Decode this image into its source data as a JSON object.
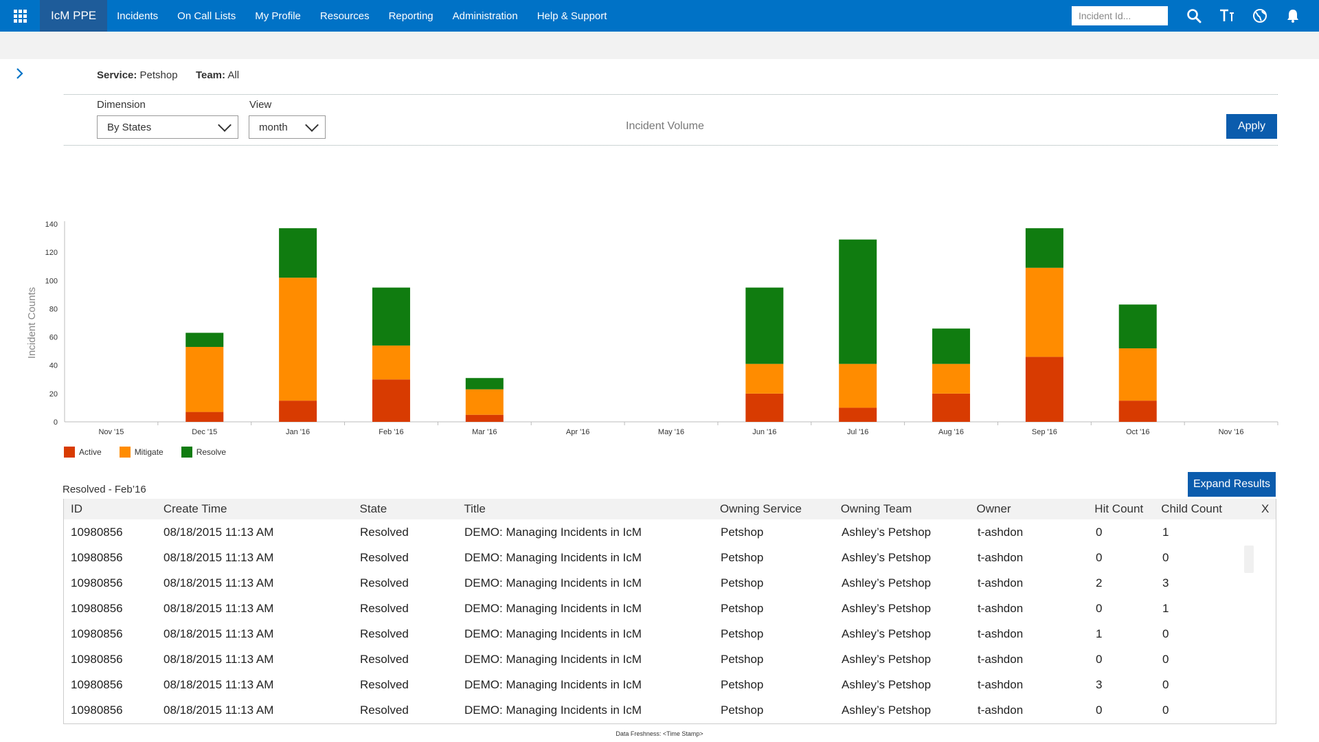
{
  "app": {
    "brand": "IcM PPE"
  },
  "nav": [
    "Incidents",
    "On Call Lists",
    "My Profile",
    "Resources",
    "Reporting",
    "Administration",
    "Help & Support"
  ],
  "search": {
    "placeholder": "Incident Id..."
  },
  "icons": {
    "waffle": "app-launcher-icon",
    "search": "search-icon",
    "text": "text-size-icon",
    "globe": "globe-icon",
    "bell": "bell-icon",
    "expand": "chevron-right-icon"
  },
  "filters": {
    "service_label": "Service:",
    "service_value": "Petshop",
    "team_label": "Team:",
    "team_value": "All"
  },
  "controls": {
    "dimension_label": "Dimension",
    "dimension_value": "By States",
    "view_label": "View",
    "view_value": "month",
    "chart_caption": "Incident Volume",
    "apply_label": "Apply"
  },
  "chart_data": {
    "type": "bar",
    "stacked": true,
    "ylabel": "Incident Counts",
    "ylim": [
      0,
      140
    ],
    "yticks": [
      0,
      20,
      40,
      60,
      80,
      100,
      120,
      140
    ],
    "categories": [
      "Nov '15",
      "Dec '15",
      "Jan '16",
      "Feb '16",
      "Mar '16",
      "Apr '16",
      "May '16",
      "Jun '16",
      "Jul '16",
      "Aug '16",
      "Sep '16",
      "Oct '16",
      "Nov '16"
    ],
    "series": [
      {
        "name": "Active",
        "color": "#d83b01",
        "values": [
          0,
          7,
          15,
          30,
          5,
          0,
          0,
          20,
          10,
          20,
          46,
          15,
          0
        ]
      },
      {
        "name": "Mitigate",
        "color": "#ff8c00",
        "values": [
          0,
          46,
          87,
          24,
          18,
          0,
          0,
          21,
          31,
          21,
          63,
          37,
          0
        ]
      },
      {
        "name": "Resolve",
        "color": "#107c10",
        "values": [
          0,
          10,
          35,
          41,
          8,
          0,
          0,
          54,
          88,
          25,
          28,
          31,
          0
        ]
      }
    ],
    "legend_position": "bottom-left"
  },
  "results": {
    "title": "Resolved - Feb’16",
    "expand_label": "Expand Results",
    "columns": [
      "ID",
      "Create Time",
      "State",
      "Title",
      "Owning Service",
      "Owning Team",
      "Owner",
      "Hit Count",
      "Child Count",
      "X"
    ],
    "rows": [
      [
        "10980856",
        "08/18/2015 11:13 AM",
        "Resolved",
        "DEMO: Managing Incidents in IcM",
        "Petshop",
        "Ashley’s Petshop",
        "t-ashdon",
        "0",
        "1"
      ],
      [
        "10980856",
        "08/18/2015 11:13 AM",
        "Resolved",
        "DEMO: Managing Incidents in IcM",
        "Petshop",
        "Ashley’s Petshop",
        "t-ashdon",
        "0",
        "0"
      ],
      [
        "10980856",
        "08/18/2015 11:13 AM",
        "Resolved",
        "DEMO: Managing Incidents in IcM",
        "Petshop",
        "Ashley’s Petshop",
        "t-ashdon",
        "2",
        "3"
      ],
      [
        "10980856",
        "08/18/2015 11:13 AM",
        "Resolved",
        "DEMO: Managing Incidents in IcM",
        "Petshop",
        "Ashley’s Petshop",
        "t-ashdon",
        "0",
        "1"
      ],
      [
        "10980856",
        "08/18/2015 11:13 AM",
        "Resolved",
        "DEMO: Managing Incidents in IcM",
        "Petshop",
        "Ashley’s Petshop",
        "t-ashdon",
        "1",
        "0"
      ],
      [
        "10980856",
        "08/18/2015 11:13 AM",
        "Resolved",
        "DEMO: Managing Incidents in IcM",
        "Petshop",
        "Ashley’s Petshop",
        "t-ashdon",
        "0",
        "0"
      ],
      [
        "10980856",
        "08/18/2015 11:13 AM",
        "Resolved",
        "DEMO: Managing Incidents in IcM",
        "Petshop",
        "Ashley’s Petshop",
        "t-ashdon",
        "3",
        "0"
      ],
      [
        "10980856",
        "08/18/2015 11:13 AM",
        "Resolved",
        "DEMO: Managing Incidents in IcM",
        "Petshop",
        "Ashley’s Petshop",
        "t-ashdon",
        "0",
        "0"
      ]
    ]
  },
  "footer": {
    "freshness": "Data Freshness: <Time Stamp>"
  }
}
